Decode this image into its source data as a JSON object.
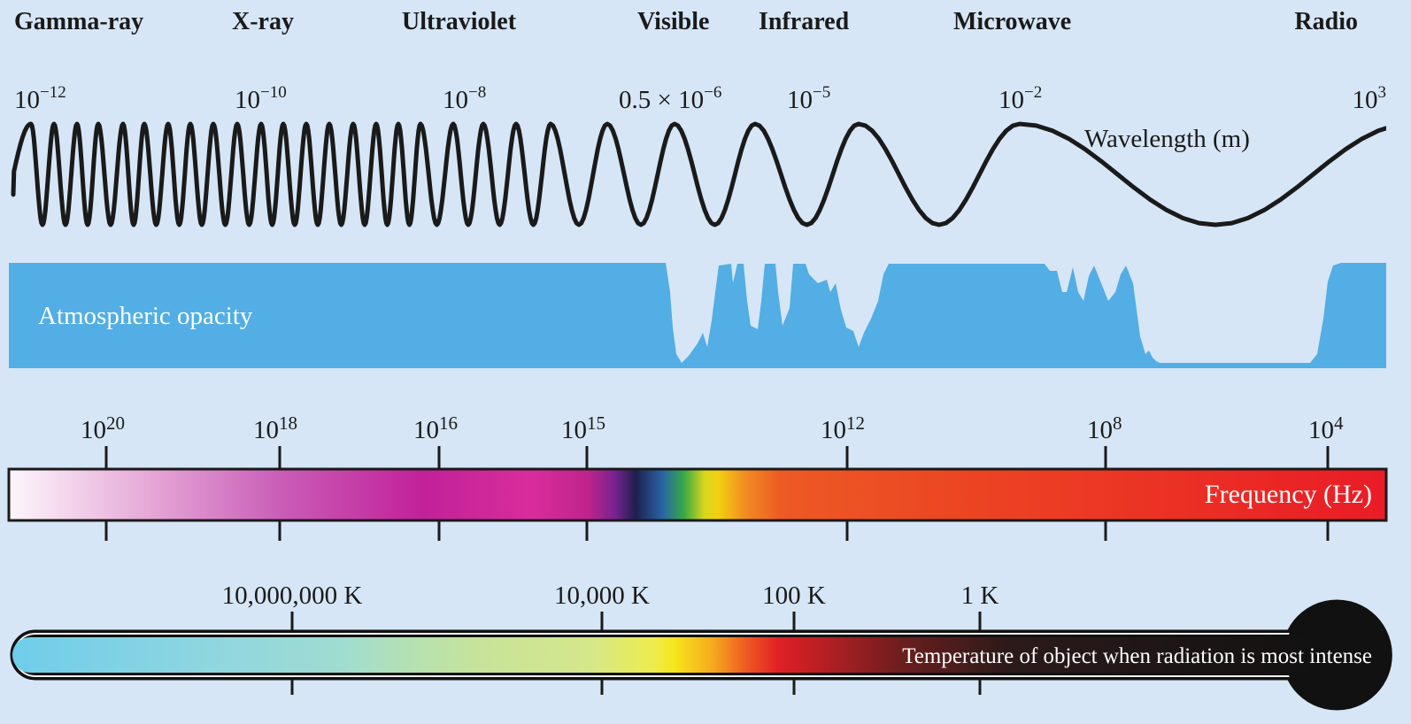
{
  "bands": [
    "Gamma-ray",
    "X-ray",
    "Ultraviolet",
    "Visible",
    "Infrared",
    "Microwave",
    "Radio"
  ],
  "wavelength": {
    "label": "Wavelength (m)",
    "ticks": [
      {
        "base": "10",
        "exp": "−12"
      },
      {
        "base": "10",
        "exp": "−10"
      },
      {
        "base": "10",
        "exp": "−8"
      },
      {
        "base": "0.5 × 10",
        "exp": "−6"
      },
      {
        "base": "10",
        "exp": "−5"
      },
      {
        "base": "10",
        "exp": "−2"
      },
      {
        "base": "10",
        "exp": "3"
      }
    ]
  },
  "opacity": {
    "label": "Atmospheric opacity",
    "color": "#52aee4"
  },
  "frequency": {
    "label": "Frequency (Hz)",
    "ticks": [
      {
        "base": "10",
        "exp": "20"
      },
      {
        "base": "10",
        "exp": "18"
      },
      {
        "base": "10",
        "exp": "16"
      },
      {
        "base": "10",
        "exp": "15"
      },
      {
        "base": "10",
        "exp": "12"
      },
      {
        "base": "10",
        "exp": "8"
      },
      {
        "base": "10",
        "exp": "4"
      }
    ]
  },
  "temperature": {
    "label": "Temperature of object when radiation is most intense",
    "ticks": [
      "10,000,000 K",
      "10,000 K",
      "100 K",
      "1 K"
    ]
  },
  "colors": {
    "background": "#d6e6f6",
    "wave": "#1a1a1a",
    "opacity": "#52aee4"
  }
}
